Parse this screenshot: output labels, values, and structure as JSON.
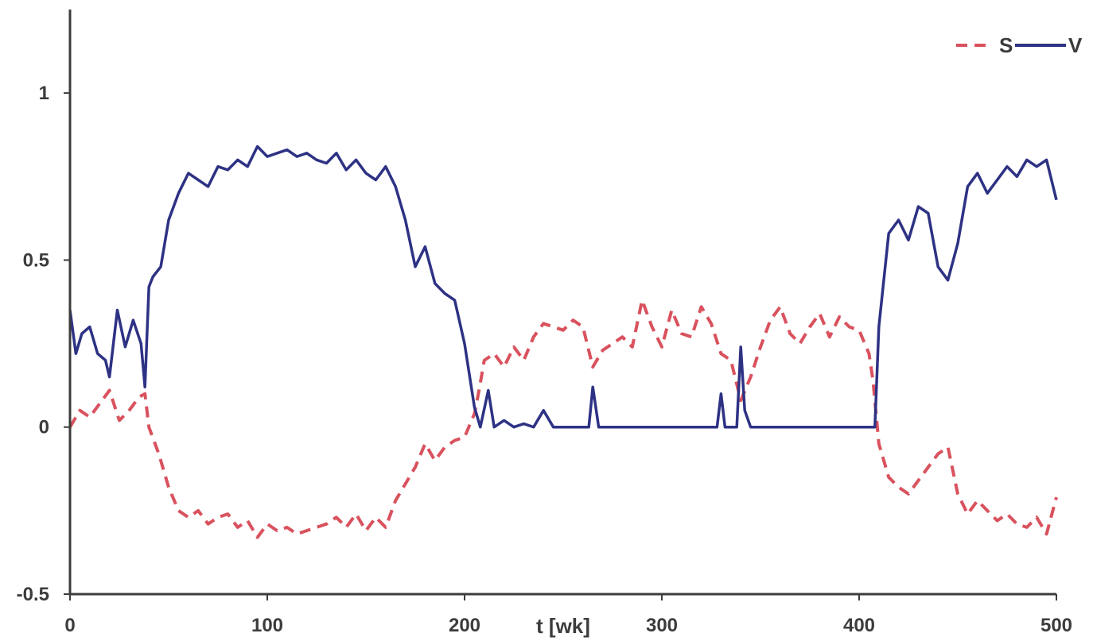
{
  "chart_data": {
    "type": "line",
    "title": "",
    "xlabel": "t [wk]",
    "ylabel": "",
    "xlim": [
      0,
      500
    ],
    "ylim": [
      -0.5,
      1.25
    ],
    "x_ticks": [
      0,
      100,
      200,
      300,
      400,
      500
    ],
    "y_ticks": [
      -0.5,
      0,
      0.5,
      1
    ],
    "x_tick_labels": [
      "0",
      "100",
      "200",
      "300",
      "400",
      "500"
    ],
    "y_tick_labels": [
      "-0.5",
      "0",
      "0.5",
      "1"
    ],
    "grid": false,
    "legend_position": "top-right",
    "legend": [
      {
        "name": "S",
        "color": "#d9525e",
        "style": "dashed"
      },
      {
        "name": "V",
        "color": "#2e3284",
        "style": "solid"
      }
    ],
    "series": [
      {
        "name": "S",
        "color": "#d9525e",
        "style": "dashed",
        "x": [
          0,
          5,
          10,
          15,
          20,
          25,
          30,
          35,
          38,
          40,
          45,
          50,
          55,
          60,
          65,
          70,
          75,
          80,
          85,
          90,
          95,
          100,
          105,
          110,
          115,
          120,
          125,
          130,
          135,
          140,
          145,
          150,
          155,
          160,
          165,
          170,
          175,
          180,
          185,
          190,
          195,
          200,
          205,
          207,
          210,
          215,
          220,
          225,
          230,
          235,
          240,
          245,
          250,
          255,
          260,
          265,
          270,
          275,
          280,
          285,
          290,
          295,
          300,
          305,
          310,
          315,
          320,
          325,
          330,
          335,
          340,
          345,
          350,
          355,
          360,
          365,
          370,
          375,
          380,
          385,
          390,
          395,
          400,
          405,
          407,
          410,
          415,
          420,
          425,
          430,
          435,
          440,
          445,
          450,
          455,
          460,
          465,
          470,
          475,
          480,
          485,
          490,
          495,
          500
        ],
        "y": [
          0.0,
          0.05,
          0.03,
          0.07,
          0.11,
          0.02,
          0.05,
          0.09,
          0.1,
          0.0,
          -0.08,
          -0.18,
          -0.25,
          -0.27,
          -0.25,
          -0.29,
          -0.27,
          -0.26,
          -0.3,
          -0.28,
          -0.33,
          -0.29,
          -0.31,
          -0.3,
          -0.32,
          -0.31,
          -0.3,
          -0.29,
          -0.27,
          -0.3,
          -0.26,
          -0.31,
          -0.27,
          -0.3,
          -0.22,
          -0.17,
          -0.12,
          -0.05,
          -0.1,
          -0.06,
          -0.04,
          -0.03,
          0.04,
          0.1,
          0.2,
          0.22,
          0.18,
          0.24,
          0.2,
          0.27,
          0.31,
          0.3,
          0.29,
          0.32,
          0.3,
          0.18,
          0.23,
          0.25,
          0.27,
          0.24,
          0.38,
          0.3,
          0.24,
          0.35,
          0.28,
          0.27,
          0.36,
          0.31,
          0.22,
          0.2,
          0.08,
          0.15,
          0.24,
          0.32,
          0.36,
          0.28,
          0.25,
          0.3,
          0.34,
          0.27,
          0.33,
          0.3,
          0.29,
          0.22,
          0.14,
          -0.05,
          -0.15,
          -0.18,
          -0.2,
          -0.16,
          -0.12,
          -0.08,
          -0.06,
          -0.2,
          -0.26,
          -0.22,
          -0.25,
          -0.28,
          -0.26,
          -0.29,
          -0.3,
          -0.27,
          -0.32,
          -0.21
        ]
      },
      {
        "name": "V",
        "color": "#2e3284",
        "style": "solid",
        "x": [
          0,
          3,
          6,
          10,
          14,
          18,
          20,
          24,
          28,
          32,
          36,
          38,
          40,
          42,
          46,
          50,
          55,
          60,
          65,
          70,
          75,
          80,
          85,
          90,
          95,
          100,
          105,
          110,
          115,
          120,
          125,
          130,
          135,
          140,
          145,
          150,
          155,
          160,
          165,
          170,
          175,
          180,
          185,
          190,
          195,
          200,
          205,
          208,
          212,
          215,
          220,
          225,
          230,
          235,
          240,
          245,
          250,
          255,
          260,
          263,
          265,
          268,
          270,
          272,
          280,
          290,
          300,
          310,
          315,
          320,
          325,
          328,
          330,
          332,
          334,
          336,
          338,
          340,
          342,
          345,
          348,
          350,
          360,
          380,
          400,
          405,
          408,
          410,
          415,
          420,
          425,
          430,
          435,
          440,
          445,
          450,
          455,
          460,
          465,
          470,
          475,
          480,
          485,
          490,
          495,
          500
        ],
        "y": [
          0.35,
          0.22,
          0.28,
          0.3,
          0.22,
          0.2,
          0.15,
          0.35,
          0.24,
          0.32,
          0.25,
          0.12,
          0.42,
          0.45,
          0.48,
          0.62,
          0.7,
          0.76,
          0.74,
          0.72,
          0.78,
          0.77,
          0.8,
          0.78,
          0.84,
          0.81,
          0.82,
          0.83,
          0.81,
          0.82,
          0.8,
          0.79,
          0.82,
          0.77,
          0.8,
          0.76,
          0.74,
          0.78,
          0.72,
          0.62,
          0.48,
          0.54,
          0.43,
          0.4,
          0.38,
          0.25,
          0.06,
          0.0,
          0.11,
          0.0,
          0.02,
          0.0,
          0.01,
          0.0,
          0.05,
          0.0,
          0.0,
          0.0,
          0.0,
          0.0,
          0.12,
          0.0,
          0.0,
          0.0,
          0.0,
          0.0,
          0.0,
          0.0,
          0.0,
          0.0,
          0.0,
          0.0,
          0.1,
          0.0,
          0.0,
          0.0,
          0.0,
          0.24,
          0.05,
          0.0,
          0.0,
          0.0,
          0.0,
          0.0,
          0.0,
          0.0,
          0.0,
          0.3,
          0.58,
          0.62,
          0.56,
          0.66,
          0.64,
          0.48,
          0.44,
          0.55,
          0.72,
          0.76,
          0.7,
          0.74,
          0.78,
          0.75,
          0.8,
          0.78,
          0.8,
          0.68
        ]
      }
    ]
  }
}
